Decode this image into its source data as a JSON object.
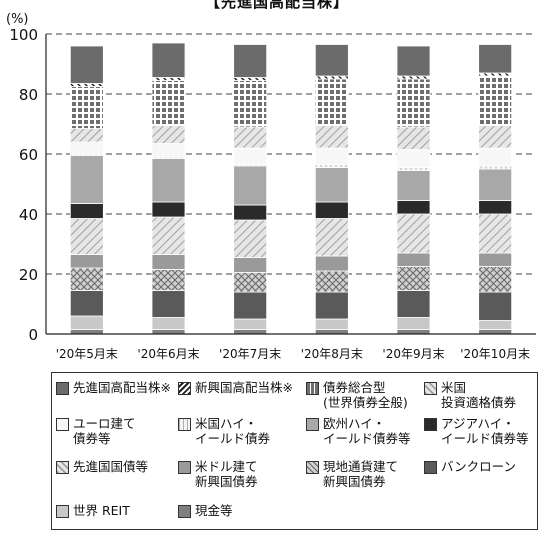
{
  "page_title_fragment": "【先進国高配当株】",
  "chart_data": {
    "type": "bar",
    "stacked": true,
    "ylabel": "(%)",
    "ylim": [
      0,
      100
    ],
    "yticks": [
      0,
      20,
      40,
      60,
      80,
      100
    ],
    "grid": "dashed horizontal",
    "categories": [
      "'20年5月末",
      "'20年6月末",
      "'20年7月末",
      "'20年8月末",
      "'20年9月末",
      "'20年10月末"
    ],
    "series": [
      {
        "name": "現金等",
        "color": "#7f7f7f",
        "pattern": "solid",
        "values": [
          1.5,
          1.5,
          1.5,
          1.5,
          1.5,
          1.5
        ]
      },
      {
        "name": "世界 REIT",
        "color": "#c8c8c8",
        "pattern": "solid",
        "values": [
          4.5,
          4.0,
          3.5,
          3.5,
          4.0,
          3.0
        ]
      },
      {
        "name": "バンクローン",
        "color": "#5a5a5a",
        "pattern": "solid",
        "values": [
          8.5,
          9.0,
          9.0,
          9.0,
          9.0,
          9.5
        ]
      },
      {
        "name": "現地通貨建て\n新興国債券",
        "color": "#bdbdbd",
        "pattern": "cross",
        "values": [
          7.5,
          7.0,
          6.5,
          7.0,
          8.0,
          8.5
        ]
      },
      {
        "name": "米ドル建て\n新興国債券",
        "color": "#9a9a9a",
        "pattern": "solid",
        "values": [
          4.5,
          5.0,
          5.0,
          5.0,
          4.5,
          4.5
        ]
      },
      {
        "name": "先進国国債等",
        "color": "#e0e0e0",
        "pattern": "diag",
        "values": [
          12.0,
          12.5,
          12.5,
          12.5,
          13.0,
          13.0
        ]
      },
      {
        "name": "アジアハイ・\nイールド債券等",
        "color": "#2a2a2a",
        "pattern": "solid",
        "values": [
          5.0,
          5.0,
          5.0,
          5.5,
          4.5,
          4.5
        ]
      },
      {
        "name": "欧州ハイ・\nイールド債券等",
        "color": "#a8a8a8",
        "pattern": "solid",
        "values": [
          16.0,
          14.5,
          13.0,
          11.5,
          10.0,
          10.5
        ]
      },
      {
        "name": "米国ハイ・\nイールド債券",
        "color": "#f0f0f0",
        "pattern": "vlines",
        "values": [
          0.5,
          0.5,
          0.5,
          1.0,
          1.0,
          1.0
        ]
      },
      {
        "name": "ユーロ建て\n債券等",
        "color": "#f7f7f7",
        "pattern": "solid",
        "values": [
          4.0,
          4.5,
          5.5,
          5.5,
          6.0,
          6.0
        ]
      },
      {
        "name": "米国\n投資適格債券",
        "color": "#d4d4d4",
        "pattern": "diag",
        "values": [
          4.5,
          6.0,
          7.0,
          7.5,
          7.5,
          7.5
        ]
      },
      {
        "name": "債券総合型\n(世界債券全般)",
        "color": "#7a7a7a",
        "pattern": "grid",
        "values": [
          14.0,
          15.0,
          15.5,
          15.5,
          16.0,
          16.5
        ]
      },
      {
        "name": "新興国高配当株※",
        "color": "#444444",
        "pattern": "stripe",
        "values": [
          1.0,
          1.0,
          1.0,
          1.0,
          1.0,
          1.0
        ]
      },
      {
        "name": "先進国高配当株※",
        "color": "#6b6b6b",
        "pattern": "solid",
        "values": [
          12.5,
          11.5,
          11.0,
          10.5,
          10.0,
          9.5
        ]
      }
    ],
    "legend_order": [
      13,
      12,
      11,
      10,
      9,
      8,
      7,
      6,
      5,
      4,
      3,
      2,
      1,
      0
    ],
    "legend_placement": "bottom"
  }
}
